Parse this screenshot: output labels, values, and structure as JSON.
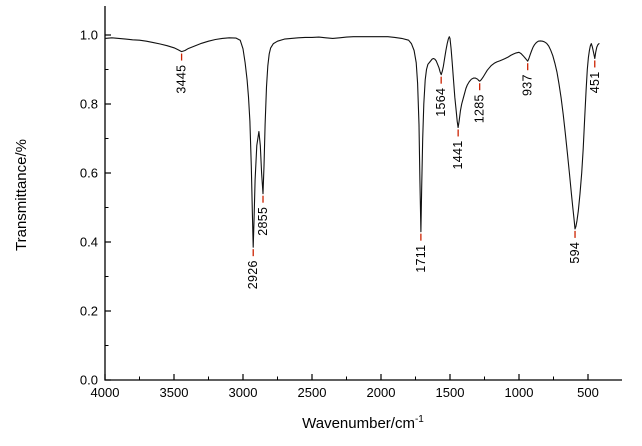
{
  "figure": {
    "background": "#ffffff"
  },
  "chart_data": {
    "type": "line",
    "title": "",
    "xlabel": "Wavenumber/cm⁻¹",
    "xlabel_base": "Wavenumber/cm",
    "xlabel_sup": "-1",
    "ylabel": "Transmittance/%",
    "line_color": "#111111",
    "axis_color": "#000000",
    "annotation_color": "#cc2200",
    "legend": "none",
    "grid": "off",
    "x_axis": {
      "min": 4000,
      "max": 400,
      "reversed": true,
      "ticks": [
        {
          "value": 4000,
          "label": "4000"
        },
        {
          "value": 3500,
          "label": "3500"
        },
        {
          "value": 3000,
          "label": "3000"
        },
        {
          "value": 2500,
          "label": "2500"
        },
        {
          "value": 2000,
          "label": "2000"
        },
        {
          "value": 1500,
          "label": "1500"
        },
        {
          "value": 1000,
          "label": "1000"
        },
        {
          "value": 500,
          "label": "500"
        }
      ],
      "minor_ticks": [
        3750,
        3250,
        2750,
        2250,
        1750,
        1250,
        750
      ]
    },
    "y_axis": {
      "min": 0.0,
      "max": 1.0,
      "ticks": [
        {
          "value": 0.0,
          "label": "0.0"
        },
        {
          "value": 0.2,
          "label": "0.2"
        },
        {
          "value": 0.4,
          "label": "0.4"
        },
        {
          "value": 0.6,
          "label": "0.6"
        },
        {
          "value": 0.8,
          "label": "0.8"
        },
        {
          "value": 1.0,
          "label": "1.0"
        }
      ],
      "minor_ticks": [
        0.1,
        0.3,
        0.5,
        0.7,
        0.9
      ]
    },
    "peaks": [
      {
        "label": "3445",
        "wavenumber": 3445,
        "transmittance": 0.952
      },
      {
        "label": "2926",
        "wavenumber": 2926,
        "transmittance": 0.385
      },
      {
        "label": "2855",
        "wavenumber": 2855,
        "transmittance": 0.54
      },
      {
        "label": "1711",
        "wavenumber": 1711,
        "transmittance": 0.43
      },
      {
        "label": "1564",
        "wavenumber": 1564,
        "transmittance": 0.885
      },
      {
        "label": "1441",
        "wavenumber": 1441,
        "transmittance": 0.732
      },
      {
        "label": "1285",
        "wavenumber": 1285,
        "transmittance": 0.866
      },
      {
        "label": "937",
        "wavenumber": 937,
        "transmittance": 0.924
      },
      {
        "label": "594",
        "wavenumber": 594,
        "transmittance": 0.438
      },
      {
        "label": "451",
        "wavenumber": 451,
        "transmittance": 0.932
      }
    ],
    "points": [
      [
        4000,
        0.99
      ],
      [
        3950,
        0.992
      ],
      [
        3900,
        0.99
      ],
      [
        3850,
        0.988
      ],
      [
        3800,
        0.986
      ],
      [
        3750,
        0.985
      ],
      [
        3700,
        0.982
      ],
      [
        3650,
        0.978
      ],
      [
        3600,
        0.974
      ],
      [
        3550,
        0.969
      ],
      [
        3500,
        0.963
      ],
      [
        3470,
        0.957
      ],
      [
        3445,
        0.952
      ],
      [
        3420,
        0.955
      ],
      [
        3400,
        0.96
      ],
      [
        3350,
        0.968
      ],
      [
        3300,
        0.976
      ],
      [
        3250,
        0.982
      ],
      [
        3200,
        0.987
      ],
      [
        3150,
        0.99
      ],
      [
        3100,
        0.992
      ],
      [
        3050,
        0.991
      ],
      [
        3020,
        0.985
      ],
      [
        3000,
        0.96
      ],
      [
        2985,
        0.92
      ],
      [
        2970,
        0.87
      ],
      [
        2960,
        0.82
      ],
      [
        2950,
        0.75
      ],
      [
        2940,
        0.62
      ],
      [
        2932,
        0.48
      ],
      [
        2926,
        0.385
      ],
      [
        2920,
        0.46
      ],
      [
        2912,
        0.58
      ],
      [
        2900,
        0.68
      ],
      [
        2885,
        0.72
      ],
      [
        2875,
        0.68
      ],
      [
        2865,
        0.6
      ],
      [
        2855,
        0.54
      ],
      [
        2848,
        0.62
      ],
      [
        2840,
        0.74
      ],
      [
        2830,
        0.85
      ],
      [
        2820,
        0.91
      ],
      [
        2810,
        0.945
      ],
      [
        2800,
        0.962
      ],
      [
        2780,
        0.975
      ],
      [
        2750,
        0.982
      ],
      [
        2700,
        0.988
      ],
      [
        2650,
        0.99
      ],
      [
        2600,
        0.992
      ],
      [
        2550,
        0.993
      ],
      [
        2500,
        0.993
      ],
      [
        2450,
        0.994
      ],
      [
        2400,
        0.992
      ],
      [
        2350,
        0.99
      ],
      [
        2300,
        0.992
      ],
      [
        2250,
        0.994
      ],
      [
        2200,
        0.995
      ],
      [
        2100,
        0.995
      ],
      [
        2000,
        0.995
      ],
      [
        1950,
        0.995
      ],
      [
        1900,
        0.993
      ],
      [
        1850,
        0.99
      ],
      [
        1800,
        0.985
      ],
      [
        1780,
        0.975
      ],
      [
        1760,
        0.955
      ],
      [
        1745,
        0.92
      ],
      [
        1735,
        0.86
      ],
      [
        1725,
        0.74
      ],
      [
        1718,
        0.58
      ],
      [
        1711,
        0.43
      ],
      [
        1705,
        0.56
      ],
      [
        1698,
        0.7
      ],
      [
        1690,
        0.8
      ],
      [
        1680,
        0.87
      ],
      [
        1670,
        0.9
      ],
      [
        1660,
        0.915
      ],
      [
        1650,
        0.92
      ],
      [
        1640,
        0.925
      ],
      [
        1630,
        0.93
      ],
      [
        1620,
        0.932
      ],
      [
        1610,
        0.93
      ],
      [
        1600,
        0.925
      ],
      [
        1590,
        0.915
      ],
      [
        1580,
        0.905
      ],
      [
        1572,
        0.893
      ],
      [
        1564,
        0.885
      ],
      [
        1556,
        0.895
      ],
      [
        1548,
        0.91
      ],
      [
        1540,
        0.93
      ],
      [
        1530,
        0.955
      ],
      [
        1520,
        0.975
      ],
      [
        1512,
        0.988
      ],
      [
        1505,
        0.995
      ],
      [
        1500,
        0.99
      ],
      [
        1492,
        0.96
      ],
      [
        1484,
        0.92
      ],
      [
        1475,
        0.87
      ],
      [
        1465,
        0.82
      ],
      [
        1455,
        0.78
      ],
      [
        1448,
        0.75
      ],
      [
        1441,
        0.732
      ],
      [
        1434,
        0.75
      ],
      [
        1425,
        0.78
      ],
      [
        1415,
        0.8
      ],
      [
        1405,
        0.815
      ],
      [
        1395,
        0.83
      ],
      [
        1385,
        0.845
      ],
      [
        1375,
        0.855
      ],
      [
        1360,
        0.865
      ],
      [
        1345,
        0.872
      ],
      [
        1330,
        0.875
      ],
      [
        1315,
        0.875
      ],
      [
        1300,
        0.872
      ],
      [
        1292,
        0.868
      ],
      [
        1285,
        0.866
      ],
      [
        1275,
        0.87
      ],
      [
        1260,
        0.878
      ],
      [
        1245,
        0.888
      ],
      [
        1230,
        0.898
      ],
      [
        1215,
        0.905
      ],
      [
        1200,
        0.912
      ],
      [
        1180,
        0.918
      ],
      [
        1160,
        0.922
      ],
      [
        1140,
        0.925
      ],
      [
        1120,
        0.928
      ],
      [
        1100,
        0.932
      ],
      [
        1080,
        0.936
      ],
      [
        1060,
        0.941
      ],
      [
        1040,
        0.945
      ],
      [
        1020,
        0.948
      ],
      [
        1000,
        0.95
      ],
      [
        985,
        0.946
      ],
      [
        970,
        0.94
      ],
      [
        955,
        0.933
      ],
      [
        945,
        0.928
      ],
      [
        937,
        0.924
      ],
      [
        928,
        0.932
      ],
      [
        918,
        0.944
      ],
      [
        908,
        0.955
      ],
      [
        898,
        0.965
      ],
      [
        888,
        0.972
      ],
      [
        875,
        0.978
      ],
      [
        860,
        0.982
      ],
      [
        845,
        0.983
      ],
      [
        830,
        0.982
      ],
      [
        815,
        0.98
      ],
      [
        800,
        0.976
      ],
      [
        785,
        0.968
      ],
      [
        770,
        0.956
      ],
      [
        755,
        0.94
      ],
      [
        740,
        0.918
      ],
      [
        725,
        0.892
      ],
      [
        710,
        0.858
      ],
      [
        695,
        0.818
      ],
      [
        680,
        0.77
      ],
      [
        665,
        0.718
      ],
      [
        650,
        0.66
      ],
      [
        635,
        0.6
      ],
      [
        620,
        0.54
      ],
      [
        610,
        0.5
      ],
      [
        600,
        0.462
      ],
      [
        594,
        0.438
      ],
      [
        588,
        0.445
      ],
      [
        580,
        0.462
      ],
      [
        570,
        0.49
      ],
      [
        558,
        0.54
      ],
      [
        546,
        0.6
      ],
      [
        535,
        0.67
      ],
      [
        524,
        0.76
      ],
      [
        514,
        0.84
      ],
      [
        505,
        0.9
      ],
      [
        497,
        0.935
      ],
      [
        490,
        0.955
      ],
      [
        483,
        0.968
      ],
      [
        476,
        0.975
      ],
      [
        468,
        0.965
      ],
      [
        460,
        0.95
      ],
      [
        451,
        0.932
      ],
      [
        444,
        0.95
      ],
      [
        436,
        0.965
      ],
      [
        428,
        0.972
      ],
      [
        420,
        0.975
      ]
    ]
  }
}
